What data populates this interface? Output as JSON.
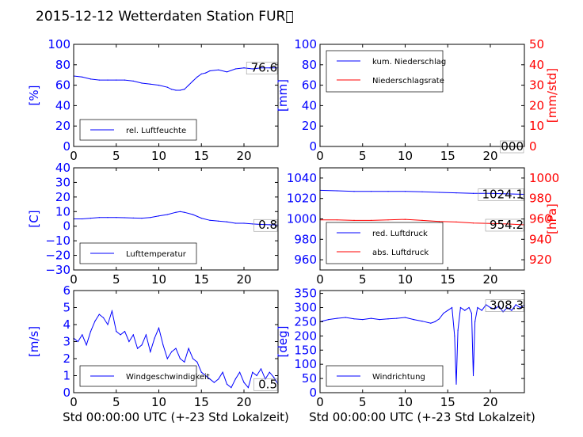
{
  "title": "2015-12-12 Wetterdaten Station FUR\u0000",
  "xlabel": "Std 00:00:00 UTC (+-23 Std Lokalzeit)",
  "colors": {
    "left_axis": "#0000ff",
    "right_axis": "#ff0000",
    "series_blue": "#0000ff",
    "series_red": "#ff0000",
    "series_light": "#8080ff"
  },
  "chart_data": [
    {
      "id": "humidity",
      "type": "line",
      "ylabel": "[%]",
      "ylim": [
        0,
        100
      ],
      "yticks": [
        "0",
        "20",
        "40",
        "60",
        "80",
        "100"
      ],
      "xlim": [
        0,
        24
      ],
      "xticks": [
        "0",
        "5",
        "10",
        "15",
        "20"
      ],
      "last_value_label": "76.6",
      "legend": {
        "placement": "bottom-left",
        "entries": [
          "rel. Luftfeuchte"
        ]
      },
      "series": [
        {
          "name": "rel. Luftfeuchte",
          "color": "#0000ff",
          "x": [
            0,
            1,
            2,
            3,
            4,
            5,
            6,
            7,
            8,
            9,
            10,
            11,
            11.5,
            12,
            12.5,
            13,
            13.5,
            14,
            14.5,
            15,
            15.5,
            16,
            17,
            18,
            19,
            20,
            21,
            22,
            23,
            24
          ],
          "y": [
            69,
            68,
            66,
            65,
            65,
            65,
            65,
            64,
            62,
            61,
            60,
            58,
            56,
            55,
            55,
            56,
            60,
            64,
            68,
            71,
            72,
            74,
            75,
            73,
            76,
            77,
            76,
            77,
            77,
            77
          ]
        }
      ]
    },
    {
      "id": "precipitation",
      "type": "line",
      "ylabel": "[mm]",
      "ylim": [
        0,
        100
      ],
      "yticks": [
        "0",
        "20",
        "40",
        "60",
        "80",
        "100"
      ],
      "y2label": "[mm/std]",
      "y2lim": [
        0,
        50
      ],
      "y2ticks": [
        "0",
        "10",
        "20",
        "30",
        "40",
        "50"
      ],
      "xlim": [
        0,
        24
      ],
      "xticks": [
        "0",
        "5",
        "10",
        "15",
        "20"
      ],
      "last_value_label": "000",
      "legend": {
        "placement": "top-left",
        "entries": [
          "kum. Niederschlag",
          "Niederschlagsrate"
        ]
      },
      "series": [
        {
          "name": "kum. Niederschlag",
          "color": "#0000ff",
          "axis": "left",
          "x": [
            0,
            24
          ],
          "y": [
            0,
            0
          ]
        },
        {
          "name": "Niederschlagsrate",
          "color": "#ff0000",
          "axis": "right",
          "x": [
            0,
            24
          ],
          "y": [
            0,
            0
          ]
        }
      ]
    },
    {
      "id": "temperature",
      "type": "line",
      "ylabel": "[C]",
      "ylim": [
        -30,
        40
      ],
      "yticks": [
        "−30",
        "−20",
        "−10",
        "0",
        "10",
        "20",
        "30",
        "40"
      ],
      "xlim": [
        0,
        24
      ],
      "xticks": [
        "0",
        "5",
        "10",
        "15",
        "20"
      ],
      "last_value_label": "0.8",
      "legend": {
        "placement": "bottom-left",
        "entries": [
          "Lufttemperatur"
        ]
      },
      "series": [
        {
          "name": "Lufttemperatur",
          "color": "#0000ff",
          "x": [
            0,
            1,
            2,
            3,
            4,
            5,
            6,
            7,
            8,
            9,
            10,
            11,
            12,
            12.5,
            13,
            14,
            15,
            16,
            17,
            18,
            19,
            20,
            21,
            22,
            23,
            24
          ],
          "y": [
            5,
            5,
            5.5,
            6,
            6,
            6,
            5.8,
            5.6,
            5.5,
            6,
            7,
            8,
            9.5,
            10,
            9.5,
            8,
            5.5,
            4,
            3.5,
            3,
            2,
            2,
            1.5,
            1.2,
            1,
            0.8
          ]
        }
      ]
    },
    {
      "id": "pressure",
      "type": "line",
      "ylabel": "",
      "ylim": [
        950,
        1050
      ],
      "yticks": [
        "960",
        "980",
        "1000",
        "1020",
        "1040"
      ],
      "y2label": "[hPa]",
      "y2lim": [
        910,
        1010
      ],
      "y2ticks": [
        "920",
        "940",
        "960",
        "980",
        "1000"
      ],
      "xlim": [
        0,
        24
      ],
      "xticks": [
        "0",
        "5",
        "10",
        "15",
        "20"
      ],
      "last_value_label_upper": "1024.1",
      "last_value_label_lower": "954.2",
      "legend": {
        "placement": "bottom-left",
        "entries": [
          "red. Luftdruck",
          "abs. Luftdruck"
        ]
      },
      "series": [
        {
          "name": "red. Luftdruck",
          "color": "#0000ff",
          "axis": "left",
          "x": [
            0,
            2,
            4,
            6,
            8,
            10,
            12,
            14,
            16,
            18,
            20,
            22,
            24
          ],
          "y": [
            1028,
            1027.5,
            1027,
            1027,
            1027,
            1027,
            1026.5,
            1026,
            1025.5,
            1025,
            1025,
            1024.5,
            1024
          ]
        },
        {
          "name": "abs. Luftdruck",
          "color": "#ff0000",
          "axis": "right",
          "x": [
            0,
            2,
            4,
            6,
            8,
            10,
            12,
            14,
            16,
            18,
            20,
            22,
            24
          ],
          "y": [
            959,
            959,
            958.5,
            958.5,
            959,
            959.5,
            958.5,
            957.5,
            957,
            956,
            955.5,
            955,
            954.2
          ]
        }
      ]
    },
    {
      "id": "windspeed",
      "type": "line",
      "ylabel": "[m/s]",
      "ylim": [
        0,
        6
      ],
      "yticks": [
        "0",
        "1",
        "2",
        "3",
        "4",
        "5",
        "6"
      ],
      "xlim": [
        0,
        24
      ],
      "xticks": [
        "0",
        "5",
        "10",
        "15",
        "20"
      ],
      "last_value_label": "0.5",
      "legend": {
        "placement": "bottom-left",
        "entries": [
          "Windgeschwindigkeit"
        ]
      },
      "series": [
        {
          "name": "Windgeschwindigkeit",
          "color": "#0000ff",
          "x": [
            0,
            0.5,
            1,
            1.5,
            2,
            2.5,
            3,
            3.5,
            4,
            4.5,
            5,
            5.5,
            6,
            6.5,
            7,
            7.5,
            8,
            8.5,
            9,
            9.5,
            10,
            10.5,
            11,
            11.5,
            12,
            12.5,
            13,
            13.5,
            14,
            14.5,
            15,
            15.5,
            16,
            16.5,
            17,
            17.5,
            18,
            18.5,
            19,
            19.5,
            20,
            20.5,
            21,
            21.5,
            22,
            22.5,
            23,
            23.5,
            24
          ],
          "y": [
            3.2,
            3,
            3.4,
            2.8,
            3.6,
            4.2,
            4.6,
            4.4,
            4,
            4.8,
            3.6,
            3.4,
            3.6,
            3,
            3.4,
            2.6,
            2.8,
            3.4,
            2.4,
            3.2,
            3.8,
            2.8,
            2,
            2.4,
            2.6,
            2,
            1.8,
            2.6,
            2,
            1.8,
            1.2,
            1,
            0.8,
            0.6,
            0.8,
            1.2,
            0.5,
            0.3,
            0.8,
            1.2,
            0.6,
            0.3,
            1.2,
            1,
            1.4,
            0.8,
            1.2,
            0.9,
            0.5
          ]
        }
      ]
    },
    {
      "id": "winddirection",
      "type": "line",
      "ylabel": "[deg]",
      "ylim": [
        0,
        360
      ],
      "yticks": [
        "0",
        "50",
        "100",
        "150",
        "200",
        "250",
        "300",
        "350"
      ],
      "xlim": [
        0,
        24
      ],
      "xticks": [
        "0",
        "5",
        "10",
        "15",
        "20"
      ],
      "last_value_label": "308.3",
      "legend": {
        "placement": "bottom-left",
        "entries": [
          "Windrichtung"
        ]
      },
      "series": [
        {
          "name": "Windrichtung",
          "color": "#0000ff",
          "x": [
            0,
            1,
            2,
            3,
            4,
            5,
            6,
            7,
            8,
            9,
            10,
            11,
            12,
            13,
            13.5,
            14,
            14.5,
            15,
            15.5,
            15.8,
            16,
            16.2,
            16.5,
            17,
            17.5,
            17.8,
            18,
            18.2,
            18.5,
            19,
            19.5,
            20,
            20.5,
            21,
            21.5,
            22,
            22.5,
            23,
            23.5,
            24
          ],
          "y": [
            250,
            258,
            262,
            265,
            260,
            258,
            262,
            258,
            260,
            262,
            265,
            258,
            252,
            245,
            250,
            260,
            280,
            290,
            300,
            200,
            30,
            220,
            300,
            290,
            300,
            280,
            60,
            250,
            300,
            290,
            310,
            300,
            295,
            305,
            285,
            300,
            290,
            310,
            300,
            308
          ]
        }
      ]
    }
  ]
}
